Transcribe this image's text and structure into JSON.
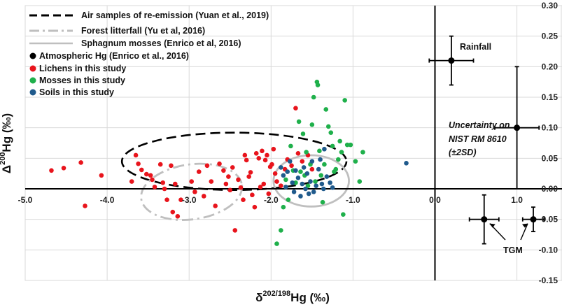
{
  "chart_data": {
    "type": "scatter",
    "xlabel_main": "δ",
    "xlabel_sup": "202/198",
    "xlabel_end": "Hg (‰)",
    "ylabel_main": "Δ",
    "ylabel_sup": "200",
    "ylabel_end": "Hg (‰)",
    "xlim": [
      -5.0,
      1.55
    ],
    "ylim": [
      -0.15,
      0.3
    ],
    "x_ticks_left": [
      "-5.0",
      "-4.0",
      "-3.0",
      "-2.0",
      "-1.0"
    ],
    "x_ticks_right": [
      "0.0",
      "1.0"
    ],
    "y_ticks": [
      "0.30",
      "0.25",
      "0.20",
      "0.15",
      "0.10",
      "0.05",
      "0.00",
      "-0.05",
      "-0.10",
      "-0.15"
    ],
    "grid": true,
    "legend": [
      {
        "name": "Air samples of re-emission (Yuan et al., 2019)",
        "style": "dashed",
        "color": "#000000"
      },
      {
        "name": "Forest litterfall (Yu et al, 2016)",
        "style": "dash-dot",
        "color": "#bfbfbf"
      },
      {
        "name": "Sphagnum mosses (Enrico et al, 2016)",
        "style": "solid",
        "color": "#bfbfbf"
      },
      {
        "name": "Atmospheric Hg (Enrico et al., 2016)",
        "style": "marker",
        "color": "#000000"
      },
      {
        "name": "Lichens in this study",
        "style": "marker",
        "color": "#e8141c"
      },
      {
        "name": "Mosses in this study",
        "style": "marker",
        "color": "#1fb04b"
      },
      {
        "name": "Soils in this study",
        "style": "marker",
        "color": "#1f5a8c"
      }
    ],
    "ellipses": [
      {
        "name": "Air samples of re-emission (Yuan et al., 2019)",
        "cx": -2.45,
        "cy": 0.045,
        "rx": 1.37,
        "ry": 0.047,
        "rotation_deg": 0,
        "style": "dashed",
        "color": "#000000"
      },
      {
        "name": "Forest litterfall (Yu et al, 2016)",
        "cx": -2.97,
        "cy": -0.005,
        "rx": 0.62,
        "ry": 0.045,
        "rotation_deg": -8,
        "style": "dash-dot",
        "color": "#bfbfbf"
      },
      {
        "name": "Sphagnum mosses (Enrico et al, 2016)",
        "cx": -1.51,
        "cy": 0.013,
        "rx": 0.46,
        "ry": 0.042,
        "rotation_deg": 0,
        "style": "solid",
        "color": "#bfbfbf"
      }
    ],
    "series": [
      {
        "name": "Lichens in this study",
        "color": "#e8141c",
        "points": [
          [
            -4.68,
            0.03
          ],
          [
            -4.53,
            0.034
          ],
          [
            -4.32,
            0.043
          ],
          [
            -4.27,
            -0.028
          ],
          [
            -4.07,
            0.022
          ],
          [
            -3.7,
            0.012
          ],
          [
            -3.65,
            0.055
          ],
          [
            -3.62,
            0.041
          ],
          [
            -3.58,
            0.031
          ],
          [
            -3.52,
            0.024
          ],
          [
            -3.47,
            0.022
          ],
          [
            -3.45,
            0.015
          ],
          [
            -3.42,
            0.003
          ],
          [
            -3.35,
            0.04
          ],
          [
            -3.32,
            0.01
          ],
          [
            -3.3,
            0.0
          ],
          [
            -3.27,
            -0.018
          ],
          [
            -3.22,
            0.038
          ],
          [
            -3.2,
            -0.038
          ],
          [
            -3.17,
            0.008
          ],
          [
            -3.14,
            -0.045
          ],
          [
            -3.1,
            -0.018
          ],
          [
            -2.97,
            0.012
          ],
          [
            -2.93,
            -0.005
          ],
          [
            -2.88,
            0.028
          ],
          [
            -2.82,
            -0.012
          ],
          [
            -2.78,
            0.038
          ],
          [
            -2.73,
            0.012
          ],
          [
            -2.68,
            -0.028
          ],
          [
            -2.63,
            0.041
          ],
          [
            -2.58,
            0.03
          ],
          [
            -2.55,
            0.008
          ],
          [
            -2.52,
            0.02
          ],
          [
            -2.5,
            -0.002
          ],
          [
            -2.47,
            0.035
          ],
          [
            -2.44,
            -0.068
          ],
          [
            -2.4,
            0.015
          ],
          [
            -2.37,
            0.002
          ],
          [
            -2.34,
            -0.018
          ],
          [
            -2.32,
            0.055
          ],
          [
            -2.3,
            0.047
          ],
          [
            -2.27,
            0.02
          ],
          [
            -2.25,
            0.027
          ],
          [
            -2.23,
            -0.01
          ],
          [
            -2.2,
            -0.03
          ],
          [
            -2.18,
            0.058
          ],
          [
            -2.15,
            0.05
          ],
          [
            -2.13,
            0.003
          ],
          [
            -2.11,
            0.062
          ],
          [
            -2.09,
            0.008
          ],
          [
            -2.07,
            0.047
          ],
          [
            -2.05,
            0.055
          ],
          [
            -2.03,
            -0.008
          ],
          [
            -2.01,
            0.036
          ],
          [
            -1.99,
            0.04
          ],
          [
            -1.97,
            0.065
          ],
          [
            -1.95,
            0.025
          ],
          [
            -1.93,
            0.012
          ],
          [
            -1.88,
            0.005
          ],
          [
            -1.83,
            0.032
          ],
          [
            -1.8,
            0.048
          ],
          [
            -1.75,
            0.038
          ],
          [
            -1.7,
            0.132
          ],
          [
            -1.67,
            0.058
          ],
          [
            -1.62,
            0.045
          ],
          [
            -1.55,
            0.055
          ],
          [
            -1.5,
            0.032
          ]
        ]
      },
      {
        "name": "Mosses in this study",
        "color": "#1fb04b",
        "points": [
          [
            -1.93,
            -0.09
          ],
          [
            -1.88,
            -0.068
          ],
          [
            -1.85,
            -0.03
          ],
          [
            -1.82,
            0.015
          ],
          [
            -1.79,
            -0.018
          ],
          [
            -1.76,
            0.07
          ],
          [
            -1.73,
            0.03
          ],
          [
            -1.7,
            0.01
          ],
          [
            -1.66,
            0.11
          ],
          [
            -1.64,
            0.028
          ],
          [
            -1.61,
            0.09
          ],
          [
            -1.59,
            0.022
          ],
          [
            -1.57,
            0.06
          ],
          [
            -1.55,
            0.005
          ],
          [
            -1.52,
            0.04
          ],
          [
            -1.5,
            0.105
          ],
          [
            -1.48,
            0.15
          ],
          [
            -1.46,
            0.012
          ],
          [
            -1.44,
            0.175
          ],
          [
            -1.43,
            0.17
          ],
          [
            -1.41,
            0.062
          ],
          [
            -1.39,
            0.022
          ],
          [
            -1.37,
            -0.022
          ],
          [
            -1.35,
            0.04
          ],
          [
            -1.33,
            0.13
          ],
          [
            -1.3,
            0.102
          ],
          [
            -1.27,
            0.092
          ],
          [
            -1.25,
            0.07
          ],
          [
            -1.23,
            0.028
          ],
          [
            -1.21,
            0.032
          ],
          [
            -1.18,
            0.048
          ],
          [
            -1.16,
            0.078
          ],
          [
            -1.14,
            0.06
          ],
          [
            -1.12,
            -0.042
          ],
          [
            -1.1,
            0.145
          ],
          [
            -1.07,
            0.072
          ],
          [
            -1.03,
            0.072
          ],
          [
            -0.97,
            0.045
          ],
          [
            -0.92,
            0.012
          ],
          [
            -0.88,
            0.06
          ]
        ]
      },
      {
        "name": "Soils in this study",
        "color": "#1f5a8c",
        "points": [
          [
            -1.88,
            0.035
          ],
          [
            -1.85,
            0.022
          ],
          [
            -1.82,
            0.003
          ],
          [
            -1.8,
            0.028
          ],
          [
            -1.77,
            0.045
          ],
          [
            -1.74,
            0.01
          ],
          [
            -1.72,
            -0.005
          ],
          [
            -1.7,
            0.03
          ],
          [
            -1.67,
            0.018
          ],
          [
            -1.64,
            -0.012
          ],
          [
            -1.62,
            0.008
          ],
          [
            -1.6,
            0.035
          ],
          [
            -1.58,
            0.0
          ],
          [
            -1.56,
            0.025
          ],
          [
            -1.54,
            -0.008
          ],
          [
            -1.52,
            0.012
          ],
          [
            -1.5,
            0.045
          ],
          [
            -1.48,
            -0.005
          ],
          [
            -1.45,
            0.005
          ],
          [
            -1.42,
            0.032
          ],
          [
            -1.4,
            0.048
          ],
          [
            -1.38,
            0.008
          ],
          [
            -1.36,
            0.0
          ],
          [
            -1.35,
            0.065
          ],
          [
            -1.32,
            0.02
          ],
          [
            -1.28,
            0.01
          ],
          [
            -1.25,
            0.002
          ],
          [
            -0.35,
            0.042
          ]
        ]
      },
      {
        "name": "Atmospheric Hg (Enrico et al., 2016)",
        "color": "#000000",
        "points": [
          [
            0.2,
            0.21,
            0.27,
            0.04
          ],
          [
            1.0,
            0.1,
            0.27,
            0.1
          ],
          [
            0.6,
            -0.05,
            0.18,
            0.04
          ],
          [
            1.2,
            -0.05,
            0.13,
            0.02
          ]
        ]
      }
    ],
    "annotations": {
      "rainfall": "Rainfall",
      "uncertainty_line1": "Uncertainty on",
      "uncertainty_line2": "NIST RM 8610",
      "uncertainty_line3": "(±2SD)",
      "tgm": "TGM"
    }
  }
}
